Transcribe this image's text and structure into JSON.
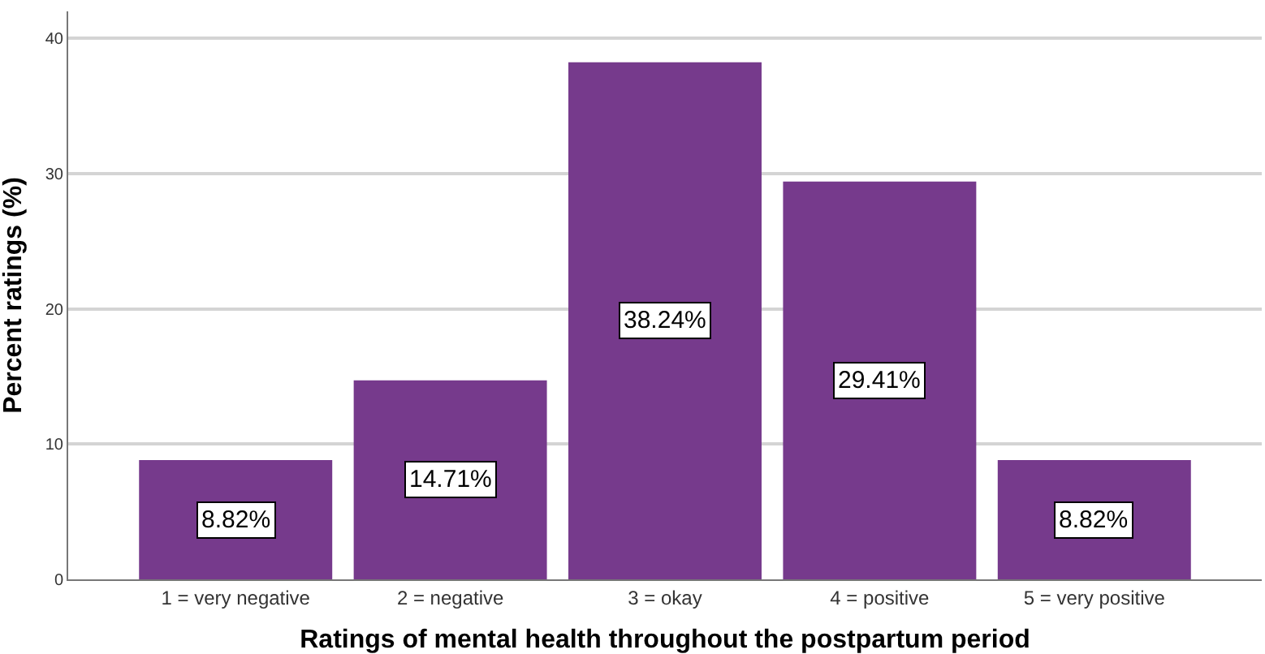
{
  "chart_data": {
    "type": "bar",
    "xlabel": "Ratings of mental health throughout the postpartum period",
    "ylabel": "Percent ratings (%)",
    "categories": [
      "1 = very negative",
      "2 = negative",
      "3 = okay",
      "4 = positive",
      "5 = very positive"
    ],
    "values": [
      8.82,
      14.71,
      38.24,
      29.41,
      8.82
    ],
    "value_labels": [
      "8.82%",
      "14.71%",
      "38.24%",
      "29.41%",
      "8.82%"
    ],
    "color": "#763a8c",
    "ylim": [
      0,
      42
    ],
    "yticks": [
      0,
      10,
      20,
      30,
      40
    ],
    "grid": "y",
    "legend": false
  }
}
